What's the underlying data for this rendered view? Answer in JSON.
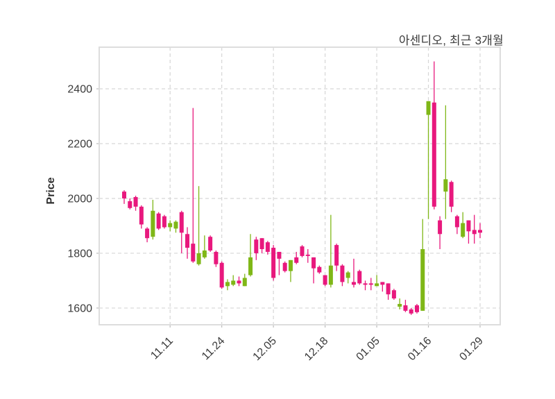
{
  "title": "아센디오, 최근 3개월",
  "colors": {
    "up": "#7fb717",
    "down": "#e8187d",
    "grid": "#d6d6d6",
    "border": "#dddddd",
    "tick": "#bbbbbb",
    "text": "#3a3a3a",
    "background": "#ffffff"
  },
  "chart_data": {
    "type": "candlestick",
    "title": "아센디오, 최근 3개월",
    "xlabel": "",
    "ylabel": "Price",
    "yticks": [
      1600,
      1800,
      2000,
      2200,
      2400
    ],
    "ylim": [
      1539,
      2552
    ],
    "grid": true,
    "legend_position": "none",
    "xtick_labels": [
      "11.11",
      "11.24",
      "12.05",
      "12.18",
      "01.05",
      "01.16",
      "01.29"
    ],
    "xtick_indices": [
      8,
      17,
      26,
      35,
      44,
      53,
      62
    ],
    "ohlc_format": [
      "open",
      "high",
      "low",
      "close"
    ],
    "candles": [
      [
        2025,
        2030,
        1980,
        2000
      ],
      [
        1990,
        2000,
        1960,
        1965
      ],
      [
        2005,
        2010,
        1955,
        1970
      ],
      [
        1970,
        1975,
        1890,
        1905
      ],
      [
        1890,
        1895,
        1840,
        1855
      ],
      [
        1860,
        1995,
        1850,
        1955
      ],
      [
        1945,
        1950,
        1885,
        1890
      ],
      [
        1935,
        1940,
        1890,
        1895
      ],
      [
        1895,
        1920,
        1880,
        1910
      ],
      [
        1890,
        1920,
        1875,
        1915
      ],
      [
        1950,
        1955,
        1800,
        1875
      ],
      [
        1870,
        1895,
        1780,
        1820
      ],
      [
        1835,
        2330,
        1765,
        1770
      ],
      [
        1760,
        2045,
        1755,
        1800
      ],
      [
        1785,
        1865,
        1780,
        1810
      ],
      [
        1860,
        1865,
        1805,
        1810
      ],
      [
        1805,
        1810,
        1750,
        1760
      ],
      [
        1765,
        1770,
        1670,
        1675
      ],
      [
        1680,
        1705,
        1665,
        1695
      ],
      [
        1685,
        1720,
        1680,
        1700
      ],
      [
        1700,
        1715,
        1680,
        1690
      ],
      [
        1680,
        1725,
        1680,
        1710
      ],
      [
        1720,
        1870,
        1715,
        1785
      ],
      [
        1850,
        1860,
        1775,
        1800
      ],
      [
        1855,
        1855,
        1800,
        1815
      ],
      [
        1840,
        1845,
        1795,
        1805
      ],
      [
        1820,
        1830,
        1700,
        1710
      ],
      [
        1805,
        1805,
        1720,
        1780
      ],
      [
        1765,
        1770,
        1730,
        1735
      ],
      [
        1735,
        1775,
        1695,
        1775
      ],
      [
        1785,
        1805,
        1760,
        1765
      ],
      [
        1825,
        1830,
        1785,
        1790
      ],
      [
        1795,
        1815,
        1765,
        1790
      ],
      [
        1785,
        1785,
        1690,
        1745
      ],
      [
        1750,
        1755,
        1725,
        1730
      ],
      [
        1720,
        1720,
        1680,
        1685
      ],
      [
        1685,
        1940,
        1675,
        1755
      ],
      [
        1830,
        1835,
        1735,
        1755
      ],
      [
        1755,
        1760,
        1680,
        1695
      ],
      [
        1710,
        1735,
        1690,
        1730
      ],
      [
        1695,
        1780,
        1675,
        1685
      ],
      [
        1735,
        1740,
        1685,
        1690
      ],
      [
        1690,
        1700,
        1665,
        1685
      ],
      [
        1690,
        1710,
        1665,
        1685
      ],
      [
        1680,
        1720,
        1680,
        1690
      ],
      [
        1695,
        1695,
        1660,
        1685
      ],
      [
        1690,
        1690,
        1630,
        1650
      ],
      [
        1665,
        1670,
        1630,
        1635
      ],
      [
        1605,
        1635,
        1595,
        1615
      ],
      [
        1610,
        1630,
        1585,
        1590
      ],
      [
        1595,
        1600,
        1575,
        1580
      ],
      [
        1610,
        1615,
        1580,
        1585
      ],
      [
        1590,
        1925,
        1590,
        1815
      ],
      [
        2305,
        2355,
        1925,
        2355
      ],
      [
        2350,
        2500,
        1960,
        1970
      ],
      [
        1920,
        1935,
        1815,
        1870
      ],
      [
        2025,
        2340,
        1925,
        2070
      ],
      [
        2060,
        2065,
        1950,
        1970
      ],
      [
        1935,
        1940,
        1870,
        1895
      ],
      [
        1860,
        1950,
        1855,
        1910
      ],
      [
        1920,
        1920,
        1835,
        1880
      ],
      [
        1885,
        1940,
        1835,
        1870
      ],
      [
        1885,
        1910,
        1855,
        1875
      ]
    ]
  }
}
